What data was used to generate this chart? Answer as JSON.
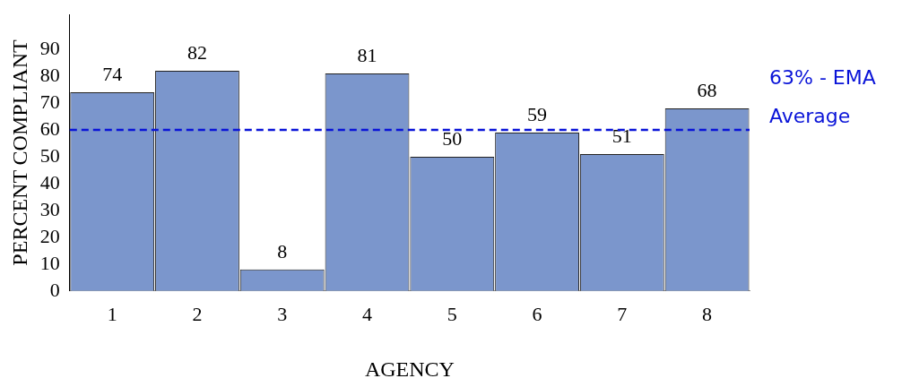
{
  "chart_data": {
    "type": "bar",
    "xlabel": "AGENCY",
    "ylabel": "PERCENT COMPLIANT",
    "categories": [
      "1",
      "2",
      "3",
      "4",
      "5",
      "6",
      "7",
      "8"
    ],
    "values": [
      74,
      82,
      8,
      81,
      50,
      59,
      51,
      68
    ],
    "color": "#7b96cc",
    "ylim": [
      0,
      103
    ],
    "yticks": [
      0,
      10,
      20,
      30,
      40,
      50,
      60,
      70,
      80,
      90
    ],
    "data_labels": true,
    "grid": false,
    "legend": false,
    "ref_lines": [
      {
        "axis": "y",
        "value": 60,
        "label": "63% - EMA Average",
        "color": "#0a14d8",
        "line_style": "dashed"
      }
    ]
  }
}
